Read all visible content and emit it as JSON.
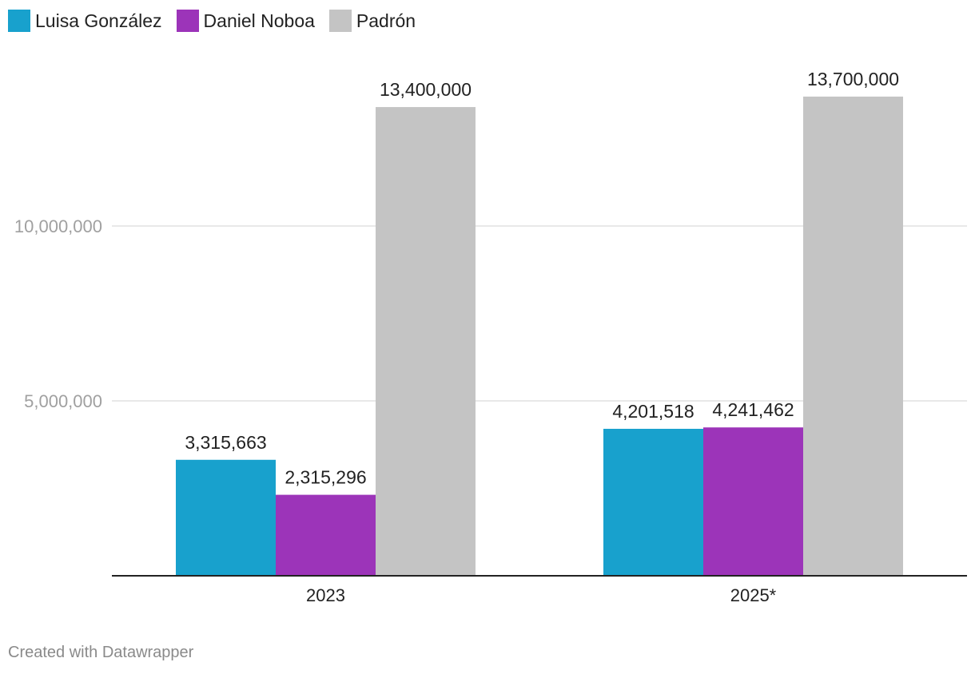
{
  "chart_data": {
    "type": "bar",
    "categories": [
      "2023",
      "2025*"
    ],
    "series": [
      {
        "name": "Luisa González",
        "color": "#18a1cd",
        "values": [
          3315663,
          4201518
        ],
        "labels": [
          "3,315,663",
          "4,201,518"
        ]
      },
      {
        "name": "Daniel Noboa",
        "color": "#9c34b9",
        "values": [
          2315296,
          4241462
        ],
        "labels": [
          "2,315,296",
          "4,241,462"
        ]
      },
      {
        "name": "Padrón",
        "color": "#c4c4c4",
        "values": [
          13400000,
          13700000
        ],
        "labels": [
          "13,400,000",
          "13,700,000"
        ]
      }
    ],
    "yticks": [
      5000000,
      10000000
    ],
    "ytick_labels": [
      "5,000,000",
      "10,000,000"
    ],
    "ylim": [
      0,
      15000000
    ],
    "legend_position": "top-left",
    "title": "",
    "xlabel": "",
    "ylabel": ""
  },
  "footer": {
    "credit": "Created with Datawrapper"
  }
}
